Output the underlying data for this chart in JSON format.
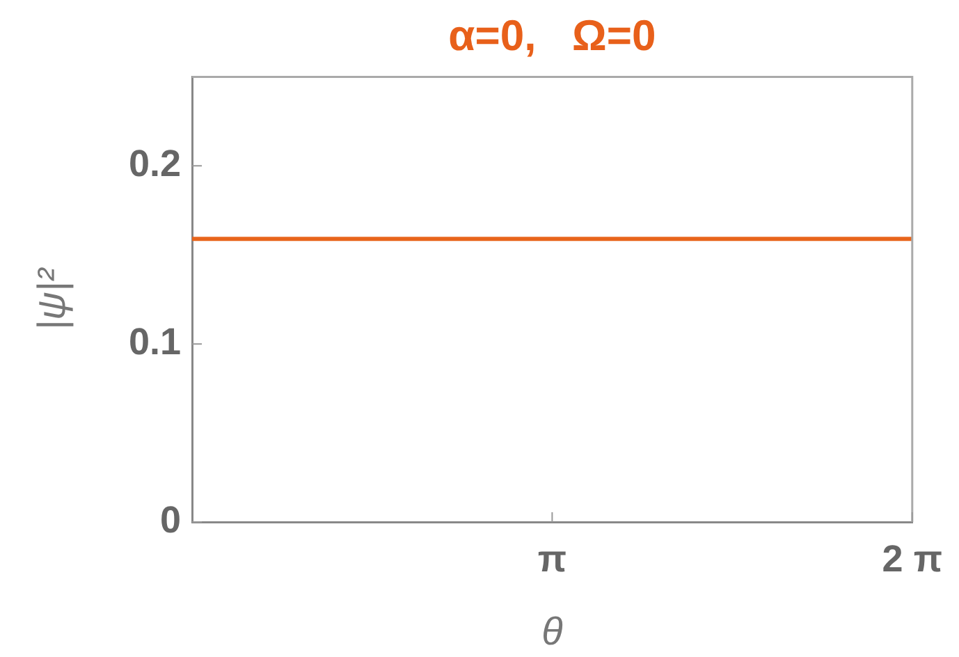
{
  "chart_data": {
    "type": "line",
    "title": "α=0,   Ω=0",
    "xlabel": "θ",
    "ylabel": "|ψ|²",
    "x": [
      0,
      6.2832
    ],
    "series": [
      {
        "color": "#e8651c",
        "values": [
          0.159,
          0.159
        ]
      }
    ],
    "xlim": [
      0,
      6.2832
    ],
    "ylim": [
      0,
      0.25
    ],
    "xticks": [
      {
        "value": 3.1416,
        "label": "π"
      },
      {
        "value": 6.2832,
        "label": "2 π"
      }
    ],
    "yticks": [
      0,
      0.1,
      0.2
    ],
    "marker": "none"
  }
}
